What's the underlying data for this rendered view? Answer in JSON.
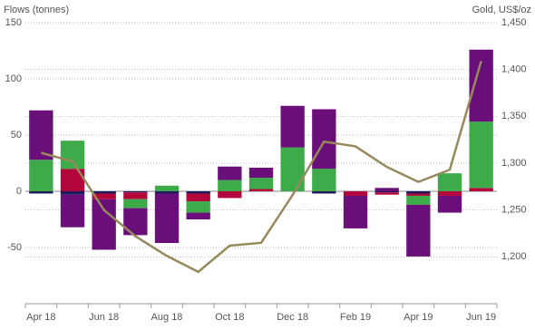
{
  "chart_data": {
    "type": "bar",
    "stacked": true,
    "y_label": "Flows (tonnes)",
    "y2_label": "Gold, US$/oz",
    "categories": [
      "Apr 18",
      null,
      "Jun 18",
      null,
      "Aug 18",
      null,
      "Oct 18",
      null,
      "Dec 18",
      null,
      "Feb 19",
      null,
      "Apr 19",
      null,
      "Jun 19"
    ],
    "ylim": [
      -100,
      150
    ],
    "yticks": [
      -50,
      0,
      50,
      100,
      150
    ],
    "y2lim": [
      1150,
      1450
    ],
    "y2ticks": [
      {
        "value": 1200,
        "label": "1,200"
      },
      {
        "value": 1250,
        "label": "1,250"
      },
      {
        "value": 1300,
        "label": "1,300"
      },
      {
        "value": 1350,
        "label": "1,350"
      },
      {
        "value": 1400,
        "label": "1,400"
      },
      {
        "value": 1450,
        "label": "1,450"
      }
    ],
    "grid": true,
    "series": [
      {
        "color": "#1e1b5c",
        "values": [
          -2,
          -3,
          -2,
          -1,
          -2,
          -2,
          0,
          0,
          0,
          -2,
          0,
          -1,
          -2,
          0,
          0
        ]
      },
      {
        "color": "#b3063c",
        "values": [
          0,
          20,
          -5,
          -6,
          0,
          -7,
          -6,
          2,
          0,
          0,
          -4,
          -2,
          -2,
          -4,
          3
        ]
      },
      {
        "color": "#3dab4a",
        "values": [
          28,
          25,
          0,
          -8,
          5,
          -10,
          10,
          10,
          39,
          20,
          0,
          0,
          -8,
          16,
          59
        ]
      },
      {
        "color": "#6a0f7a",
        "values": [
          44,
          -29,
          -45,
          -24,
          -44,
          -6,
          12,
          9,
          37,
          53,
          -29,
          3,
          -46,
          -15,
          64
        ]
      },
      {
        "type": "line",
        "axis": "y2",
        "color": "#968a5c",
        "values": [
          1311,
          1302,
          1250,
          1222,
          1201,
          1184,
          1212,
          1215,
          1266,
          1323,
          1318,
          1296,
          1280,
          1293,
          1409
        ]
      }
    ]
  }
}
